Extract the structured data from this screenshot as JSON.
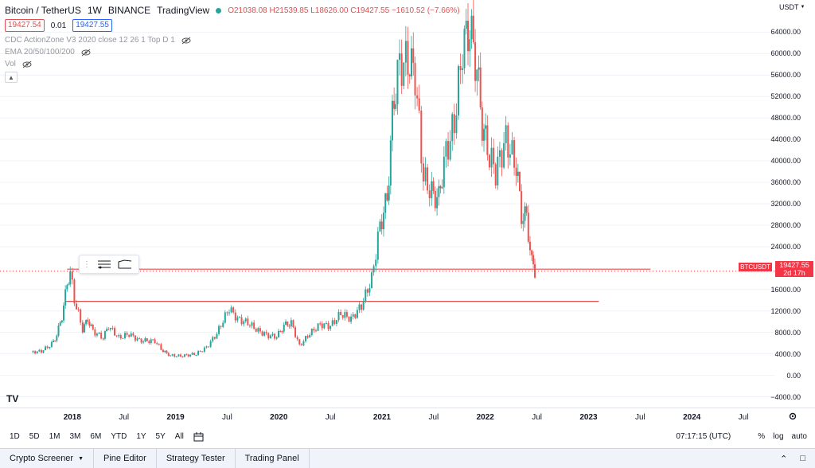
{
  "legend": {
    "symbol": "Bitcoin / TetherUS",
    "interval": "1W",
    "exchange": "BINANCE",
    "source": "TradingView",
    "ohlc": "O21038.08  H21539.85  L18626.00  C19427.55  −1610.52 (−7.66%)",
    "bid": "19427.54",
    "spread": "0.01",
    "ask": "19427.55",
    "indicator1": "CDC ActionZone V3 2020 close 12 26 1 Top D 1",
    "indicator2": "EMA 20/50/100/200",
    "indicator3": "Vol"
  },
  "currency": "USDT",
  "price_tag": {
    "symbol": "BTCUSDT",
    "price": "19427.55",
    "countdown": "2d 17h"
  },
  "bottom": {
    "timeframes": [
      "1D",
      "5D",
      "1M",
      "3M",
      "6M",
      "YTD",
      "1Y",
      "5Y",
      "All"
    ],
    "time": "07:17:15 (UTC)",
    "percent": "%",
    "log": "log",
    "auto": "auto"
  },
  "tabs": [
    "Crypto Screener",
    "Pine Editor",
    "Strategy Tester",
    "Trading Panel"
  ],
  "colors": {
    "up": "#26a69a",
    "down": "#ef5350",
    "line": "#e05050",
    "grid": "#f0f3fa"
  },
  "chart_data": {
    "type": "candlestick",
    "y_ticks": [
      "64000.00",
      "60000.00",
      "56000.00",
      "52000.00",
      "48000.00",
      "44000.00",
      "40000.00",
      "36000.00",
      "32000.00",
      "28000.00",
      "24000.00",
      "16000.00",
      "12000.00",
      "8000.00",
      "4000.00",
      "0.00",
      "−4000.00"
    ],
    "x_ticks": [
      {
        "label": "2018",
        "year": true
      },
      {
        "label": "Jul",
        "year": false
      },
      {
        "label": "2019",
        "year": true
      },
      {
        "label": "Jul",
        "year": false
      },
      {
        "label": "2020",
        "year": true
      },
      {
        "label": "Jul",
        "year": false
      },
      {
        "label": "2021",
        "year": true
      },
      {
        "label": "Jul",
        "year": false
      },
      {
        "label": "2022",
        "year": true
      },
      {
        "label": "Jul",
        "year": false
      },
      {
        "label": "2023",
        "year": true
      },
      {
        "label": "Jul",
        "year": false
      },
      {
        "label": "2024",
        "year": true
      },
      {
        "label": "Jul",
        "year": false
      }
    ],
    "x_range": [
      2017.3,
      2024.8
    ],
    "ylim": [
      -6000,
      70000
    ],
    "horizontal_lines": [
      19800,
      13800
    ],
    "close_path": [
      [
        2017.6,
        4300
      ],
      [
        2017.7,
        4500
      ],
      [
        2017.8,
        5800
      ],
      [
        2017.85,
        7500
      ],
      [
        2017.9,
        11000
      ],
      [
        2017.95,
        17000
      ],
      [
        2017.98,
        19500
      ],
      [
        2018.02,
        14000
      ],
      [
        2018.06,
        11500
      ],
      [
        2018.1,
        8500
      ],
      [
        2018.15,
        10500
      ],
      [
        2018.2,
        8200
      ],
      [
        2018.3,
        7000
      ],
      [
        2018.35,
        9200
      ],
      [
        2018.45,
        7000
      ],
      [
        2018.55,
        7700
      ],
      [
        2018.65,
        6500
      ],
      [
        2018.8,
        6400
      ],
      [
        2018.88,
        4500
      ],
      [
        2018.95,
        3700
      ],
      [
        2019.05,
        3600
      ],
      [
        2019.2,
        4000
      ],
      [
        2019.3,
        5200
      ],
      [
        2019.4,
        7800
      ],
      [
        2019.48,
        11000
      ],
      [
        2019.52,
        12500
      ],
      [
        2019.6,
        10500
      ],
      [
        2019.7,
        9800
      ],
      [
        2019.8,
        8300
      ],
      [
        2019.9,
        7400
      ],
      [
        2019.98,
        7200
      ],
      [
        2020.05,
        9300
      ],
      [
        2020.12,
        9800
      ],
      [
        2020.2,
        5500
      ],
      [
        2020.3,
        7800
      ],
      [
        2020.4,
        9500
      ],
      [
        2020.5,
        9200
      ],
      [
        2020.6,
        11500
      ],
      [
        2020.7,
        10500
      ],
      [
        2020.8,
        13000
      ],
      [
        2020.9,
        18000
      ],
      [
        2020.98,
        28000
      ],
      [
        2021.05,
        33000
      ],
      [
        2021.1,
        48000
      ],
      [
        2021.15,
        57000
      ],
      [
        2021.25,
        59000
      ],
      [
        2021.32,
        56000
      ],
      [
        2021.4,
        37000
      ],
      [
        2021.48,
        34000
      ],
      [
        2021.55,
        33000
      ],
      [
        2021.6,
        40000
      ],
      [
        2021.7,
        47000
      ],
      [
        2021.78,
        61000
      ],
      [
        2021.85,
        65000
      ],
      [
        2021.92,
        57000
      ],
      [
        2021.97,
        47000
      ],
      [
        2022.02,
        42000
      ],
      [
        2022.1,
        38000
      ],
      [
        2022.2,
        44000
      ],
      [
        2022.3,
        39000
      ],
      [
        2022.35,
        30000
      ],
      [
        2022.4,
        29500
      ],
      [
        2022.45,
        21000
      ],
      [
        2022.48,
        19427
      ]
    ]
  }
}
